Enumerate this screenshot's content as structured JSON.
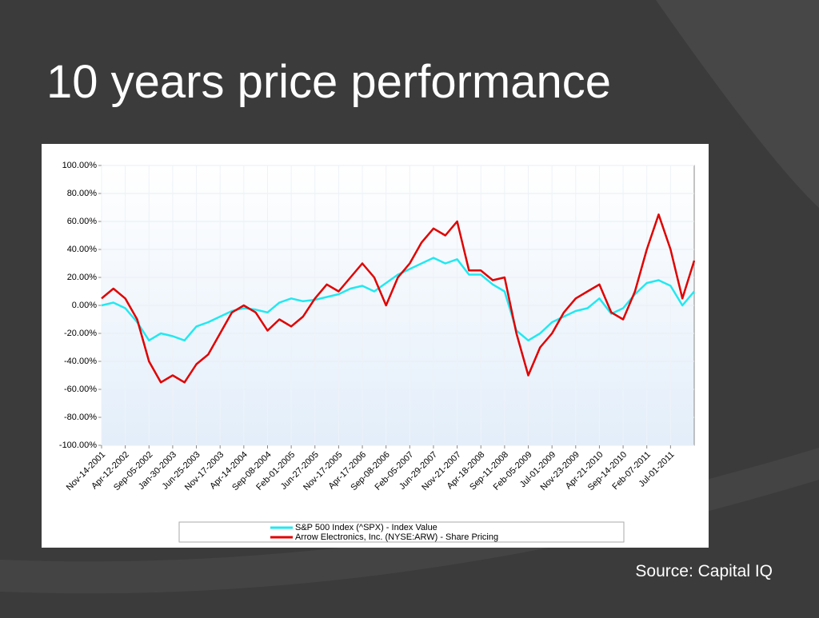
{
  "title": "10 years price performance",
  "source": "Source:  Capital IQ",
  "chart_data": {
    "type": "line",
    "categories": [
      "Nov-14-2001",
      null,
      "Apr-12-2002",
      null,
      "Sep-05-2002",
      null,
      "Jan-30-2003",
      null,
      "Jun-25-2003",
      null,
      "Nov-17-2003",
      null,
      "Apr-14-2004",
      null,
      "Sep-08-2004",
      null,
      "Feb-01-2005",
      null,
      "Jun-27-2005",
      null,
      "Nov-17-2005",
      null,
      "Apr-17-2006",
      null,
      "Sep-08-2006",
      null,
      "Feb-05-2007",
      null,
      "Jun-29-2007",
      null,
      "Nov-21-2007",
      null,
      "Apr-18-2008",
      null,
      "Sep-11-2008",
      null,
      "Feb-05-2009",
      null,
      "Jul-01-2009",
      null,
      "Nov-23-2009",
      null,
      "Apr-21-2010",
      null,
      "Sep-14-2010",
      null,
      "Feb-07-2011",
      null,
      "Jul-01-2011",
      null,
      null
    ],
    "series": [
      {
        "name": "S&P 500 Index (^SPX) - Index Value",
        "color": "#22e8f0",
        "values": [
          0,
          2,
          -2,
          -12,
          -25,
          -20,
          -22,
          -25,
          -15,
          -12,
          -8,
          -4,
          -2,
          -3,
          -5,
          2,
          5,
          3,
          4,
          6,
          8,
          12,
          14,
          10,
          16,
          22,
          26,
          30,
          34,
          30,
          33,
          22,
          22,
          15,
          10,
          -18,
          -25,
          -20,
          -12,
          -8,
          -4,
          -2,
          5,
          -6,
          -2,
          8,
          16,
          18,
          14,
          0,
          10
        ]
      },
      {
        "name": "Arrow Electronics, Inc. (NYSE:ARW) - Share Pricing",
        "color": "#e00000",
        "values": [
          5,
          12,
          5,
          -10,
          -40,
          -55,
          -50,
          -55,
          -42,
          -35,
          -20,
          -5,
          0,
          -5,
          -18,
          -10,
          -15,
          -8,
          5,
          15,
          10,
          20,
          30,
          20,
          0,
          20,
          30,
          45,
          55,
          50,
          60,
          25,
          25,
          18,
          20,
          -20,
          -50,
          -30,
          -20,
          -5,
          5,
          10,
          15,
          -5,
          -10,
          10,
          40,
          65,
          40,
          5,
          32
        ]
      }
    ],
    "ylim": [
      -100,
      100
    ],
    "yticks": [
      {
        "value": -100,
        "label": "-100.00%"
      },
      {
        "value": -80,
        "label": "-80.00%"
      },
      {
        "value": -60,
        "label": "-60.00%"
      },
      {
        "value": -40,
        "label": "-40.00%"
      },
      {
        "value": -20,
        "label": "-20.00%"
      },
      {
        "value": 0,
        "label": "0.00%"
      },
      {
        "value": 20,
        "label": "20.00%"
      },
      {
        "value": 40,
        "label": "40.00%"
      },
      {
        "value": 60,
        "label": "60.00%"
      },
      {
        "value": 80,
        "label": "80.00%"
      },
      {
        "value": 100,
        "label": "100.00%"
      }
    ],
    "grid": true
  }
}
